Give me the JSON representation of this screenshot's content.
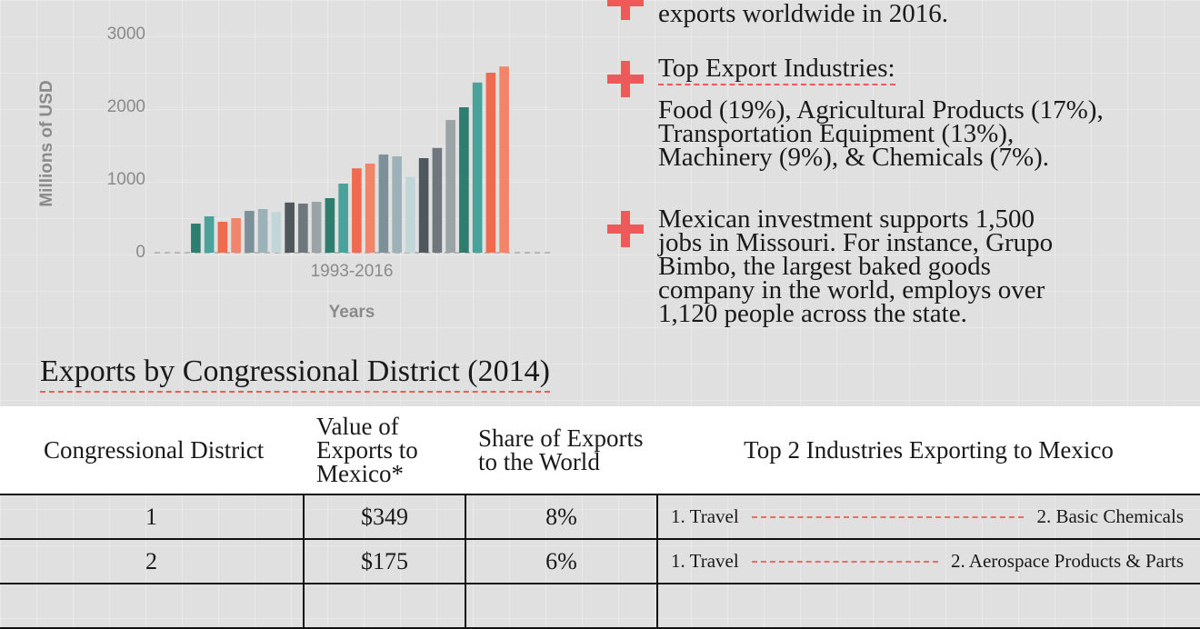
{
  "chart_data": {
    "type": "bar",
    "ylabel": "Millions of USD",
    "xlabel": "Years",
    "period": "1993-2016",
    "values": [
      400,
      500,
      425,
      475,
      575,
      600,
      560,
      690,
      675,
      700,
      750,
      950,
      1160,
      1225,
      1350,
      1325,
      1040,
      1300,
      1440,
      1825,
      2000,
      2340,
      2475,
      2560
    ],
    "colors": [
      "#2e7d6e",
      "#4aa39a",
      "#ee6b4f",
      "#f28569",
      "#7b9097",
      "#9db2b8",
      "#c2d6da",
      "#4d575c",
      "#6e777b",
      "#9aa3a6",
      "#2e7d6e",
      "#4aa39a",
      "#ee6b4f",
      "#f28569",
      "#7b9097",
      "#9db2b8",
      "#c2d6da",
      "#4d575c",
      "#6e777b",
      "#9aa3a6",
      "#2e7d6e",
      "#4aa39a",
      "#ee6b4f",
      "#f28569"
    ],
    "ylim": [
      0,
      3000
    ],
    "yticks": [
      0,
      1000,
      2000,
      3000
    ]
  },
  "notes": [
    {
      "lines": [
        "exports worldwide in 2016."
      ]
    },
    {
      "heading": "Top Export Industries:",
      "lines": [
        "Food (19%), Agricultural Products (17%),",
        "Transportation Equipment (13%),",
        "Machinery (9%), & Chemicals (7%)."
      ]
    },
    {
      "lines": [
        "Mexican investment supports 1,500",
        "jobs in Missouri. For instance, Grupo",
        "Bimbo, the largest baked goods",
        "company in the world, employs over",
        "1,120 people across the state."
      ]
    }
  ],
  "table": {
    "title": "Exports by Congressional District (2014)",
    "header": [
      "Congressional District",
      "Value of Exports to Mexico*",
      "Share of Exports to the World",
      "Top 2 Industries Exporting to Mexico"
    ],
    "rows": [
      [
        "1",
        "$349",
        "8%",
        "1. Travel",
        "2. Basic Chemicals"
      ],
      [
        "2",
        "$175",
        "6%",
        "1. Travel",
        "2. Aerospace Products & Parts"
      ]
    ]
  }
}
